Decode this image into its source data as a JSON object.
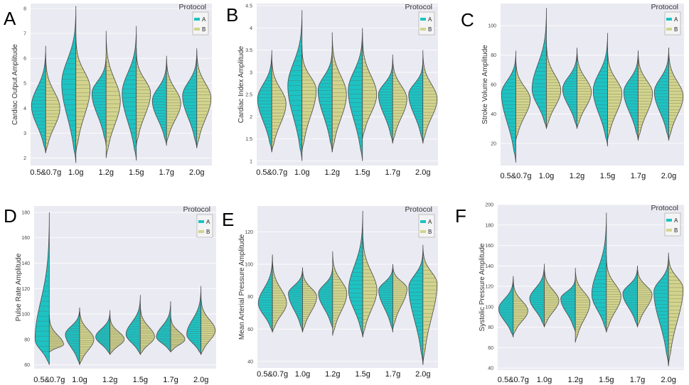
{
  "figure": {
    "legend_title": "Protocol"
  },
  "colors": {
    "A": "#1dc3c3",
    "B": "#d2d48c",
    "background": "#eaeaf2",
    "stroke": "#4a4a4a"
  },
  "chart_data": [
    {
      "panel": "A",
      "type": "violin",
      "ylabel": "Cardiac Output Amplitude",
      "ylim": [
        1.7,
        8.2
      ],
      "yticks": [
        2,
        3,
        4,
        5,
        6,
        7,
        8
      ],
      "categories": [
        "0.5&0.7g",
        "1.0g",
        "1.2g",
        "1.5g",
        "1.7g",
        "2.0g"
      ],
      "legend": [
        "A",
        "B"
      ],
      "legend_position": "top-right",
      "series": [
        {
          "name": "A",
          "min": [
            2.2,
            1.8,
            2.5,
            1.9,
            2.5,
            2.4
          ],
          "median": [
            4.1,
            5.0,
            4.6,
            4.6,
            4.3,
            4.5
          ],
          "max": [
            6.5,
            8.1,
            6.2,
            7.3,
            6.0,
            6.3
          ]
        },
        {
          "name": "B",
          "min": [
            2.2,
            2.2,
            2.0,
            2.5,
            2.6,
            2.4
          ],
          "median": [
            4.0,
            4.8,
            4.3,
            4.6,
            4.2,
            4.4
          ],
          "max": [
            6.2,
            7.0,
            7.1,
            6.4,
            6.1,
            6.4
          ]
        }
      ]
    },
    {
      "panel": "B",
      "type": "violin",
      "ylabel": "Cardiac Index Amplitude",
      "ylim": [
        0.9,
        4.55
      ],
      "yticks": [
        1.0,
        1.5,
        2.0,
        2.5,
        3.0,
        3.5,
        4.0,
        4.5
      ],
      "categories": [
        "0.5&0.7g",
        "1.0g",
        "1.2g",
        "1.5g",
        "1.7g",
        "2.0g"
      ],
      "legend": [
        "A",
        "B"
      ],
      "legend_position": "top-right",
      "series": [
        {
          "name": "A",
          "min": [
            1.2,
            1.0,
            1.2,
            1.0,
            1.4,
            1.4
          ],
          "median": [
            2.4,
            2.7,
            2.6,
            2.6,
            2.5,
            2.5
          ],
          "max": [
            3.5,
            4.4,
            3.6,
            4.0,
            3.3,
            3.3
          ]
        },
        {
          "name": "B",
          "min": [
            1.2,
            1.2,
            1.2,
            1.5,
            1.4,
            1.4
          ],
          "median": [
            2.3,
            2.6,
            2.5,
            2.5,
            2.4,
            2.4
          ],
          "max": [
            3.4,
            3.6,
            3.9,
            3.9,
            3.4,
            3.5
          ]
        }
      ]
    },
    {
      "panel": "C",
      "type": "violin",
      "ylabel": "Stroke Volume Amplitude",
      "ylim": [
        5,
        115
      ],
      "yticks": [
        20,
        40,
        60,
        80,
        100
      ],
      "categories": [
        "0.5&0.7g",
        "1.0g",
        "1.2g",
        "1.5g",
        "1.7g",
        "2.0g"
      ],
      "legend": [
        "A",
        "B"
      ],
      "legend_position": "top-right",
      "series": [
        {
          "name": "A",
          "min": [
            7,
            30,
            30,
            18,
            22,
            22
          ],
          "median": [
            54,
            57,
            57,
            56,
            55,
            55
          ],
          "max": [
            83,
            112,
            84,
            95,
            83,
            85
          ]
        },
        {
          "name": "B",
          "min": [
            22,
            30,
            30,
            22,
            22,
            22
          ],
          "median": [
            50,
            56,
            55,
            54,
            54,
            52
          ],
          "max": [
            78,
            90,
            85,
            85,
            83,
            85
          ]
        }
      ]
    },
    {
      "panel": "D",
      "type": "violin",
      "ylabel": "Pulse Rate Amplitude",
      "ylim": [
        57,
        185
      ],
      "yticks": [
        60,
        80,
        100,
        120,
        140,
        160,
        180
      ],
      "categories": [
        "0.5&0.7g",
        "1.0g",
        "1.2g",
        "1.5g",
        "1.7g",
        "2.0g"
      ],
      "legend": [
        "A",
        "B"
      ],
      "legend_position": "top-right",
      "series": [
        {
          "name": "A",
          "min": [
            60,
            60,
            68,
            68,
            70,
            68
          ],
          "median": [
            80,
            84,
            82,
            84,
            82,
            84
          ],
          "max": [
            180,
            105,
            103,
            115,
            110,
            122
          ]
        },
        {
          "name": "B",
          "min": [
            70,
            60,
            68,
            68,
            70,
            68
          ],
          "median": [
            76,
            80,
            80,
            82,
            80,
            87
          ],
          "max": [
            100,
            105,
            100,
            108,
            100,
            115
          ]
        }
      ]
    },
    {
      "panel": "E",
      "type": "violin",
      "ylabel": "Mean Arterial Pressure Amplitude",
      "ylim": [
        36,
        136
      ],
      "yticks": [
        40,
        60,
        80,
        100,
        120
      ],
      "categories": [
        "0.5&0.7g",
        "1.0g",
        "1.2g",
        "1.5g",
        "1.7g",
        "2.0g"
      ],
      "legend": [
        "A",
        "B"
      ],
      "legend_position": "top-right",
      "series": [
        {
          "name": "A",
          "min": [
            58,
            58,
            60,
            55,
            58,
            38
          ],
          "median": [
            76,
            82,
            82,
            84,
            84,
            86
          ],
          "max": [
            106,
            98,
            100,
            133,
            100,
            110
          ]
        },
        {
          "name": "B",
          "min": [
            58,
            58,
            56,
            55,
            60,
            38
          ],
          "median": [
            76,
            80,
            82,
            84,
            85,
            88
          ],
          "max": [
            105,
            98,
            108,
            122,
            100,
            112
          ]
        }
      ]
    },
    {
      "panel": "F",
      "type": "violin",
      "ylabel": "Systolic Pressure Amplitude",
      "ylim": [
        38,
        200
      ],
      "yticks": [
        40,
        60,
        80,
        100,
        120,
        140,
        160,
        180,
        200
      ],
      "categories": [
        "0.5&0.7g",
        "1.0g",
        "1.2g",
        "1.5g",
        "1.7g",
        "2.0g"
      ],
      "legend": [
        "A",
        "B"
      ],
      "legend_position": "top-right",
      "series": [
        {
          "name": "A",
          "min": [
            70,
            80,
            75,
            75,
            80,
            42
          ],
          "median": [
            98,
            108,
            108,
            112,
            113,
            115
          ],
          "max": [
            130,
            142,
            130,
            192,
            140,
            150
          ]
        },
        {
          "name": "B",
          "min": [
            72,
            80,
            65,
            75,
            80,
            42
          ],
          "median": [
            96,
            106,
            104,
            110,
            112,
            118
          ],
          "max": [
            128,
            140,
            138,
            150,
            140,
            153
          ]
        }
      ]
    }
  ]
}
